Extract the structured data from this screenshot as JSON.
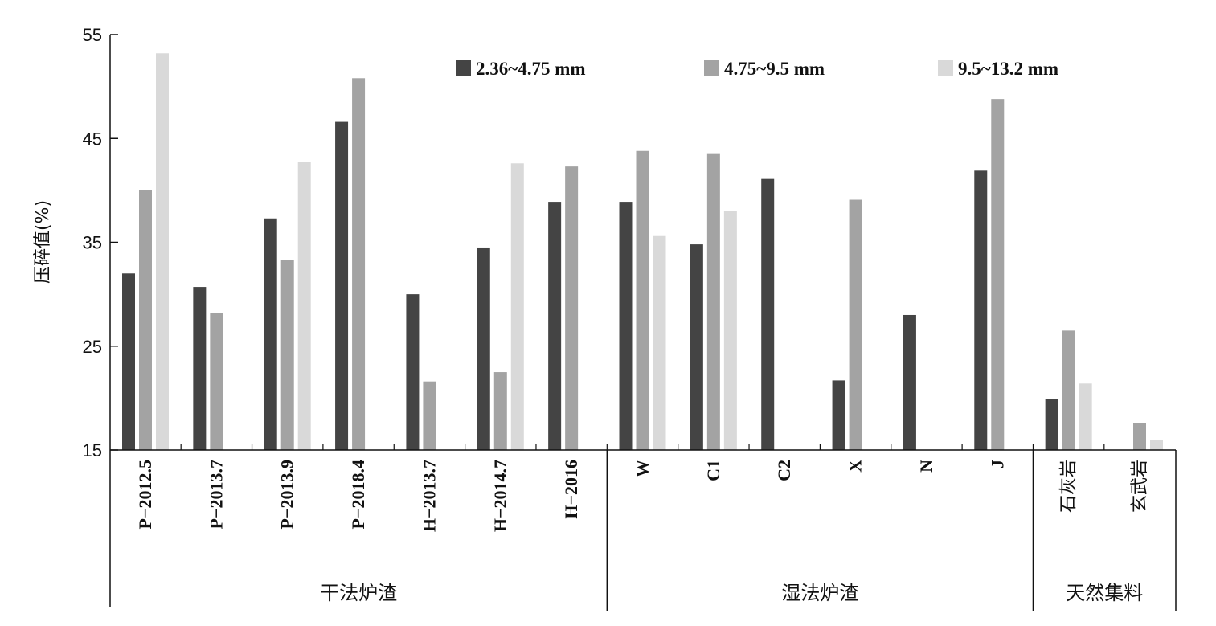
{
  "chart_data": {
    "type": "bar",
    "title": "",
    "ylabel": "压碎值(%)",
    "xlabel": "",
    "ylim": [
      15,
      55
    ],
    "yticks": [
      15,
      25,
      35,
      45,
      55
    ],
    "grid": false,
    "legend_position": "top-right",
    "categories": [
      "P−2012.5",
      "P−2013.7",
      "P−2013.9",
      "P−2018.4",
      "H−2013.7",
      "H−2014.7",
      "H−2016",
      "W",
      "C1",
      "C2",
      "X",
      "N",
      "J",
      "石灰岩",
      "玄武岩"
    ],
    "groups": [
      {
        "label": "干法炉渣",
        "start": 0,
        "end": 6
      },
      {
        "label": "湿法炉渣",
        "start": 7,
        "end": 12
      },
      {
        "label": "天然集料",
        "start": 13,
        "end": 14
      }
    ],
    "series": [
      {
        "name": "2.36~4.75 mm",
        "color": "#444444",
        "values": [
          32.0,
          30.7,
          37.3,
          46.6,
          30.0,
          34.5,
          38.9,
          38.9,
          34.8,
          41.1,
          21.7,
          28.0,
          41.9,
          19.9,
          null
        ]
      },
      {
        "name": "4.75~9.5 mm",
        "color": "#a3a3a3",
        "values": [
          40.0,
          28.2,
          33.3,
          50.8,
          21.6,
          22.5,
          42.3,
          43.8,
          43.5,
          null,
          39.1,
          null,
          48.8,
          26.5,
          17.6
        ]
      },
      {
        "name": "9.5~13.2 mm",
        "color": "#d9d9d9",
        "values": [
          53.2,
          null,
          42.7,
          null,
          null,
          42.6,
          null,
          35.6,
          38.0,
          null,
          null,
          null,
          null,
          21.4,
          16.0
        ]
      }
    ]
  }
}
